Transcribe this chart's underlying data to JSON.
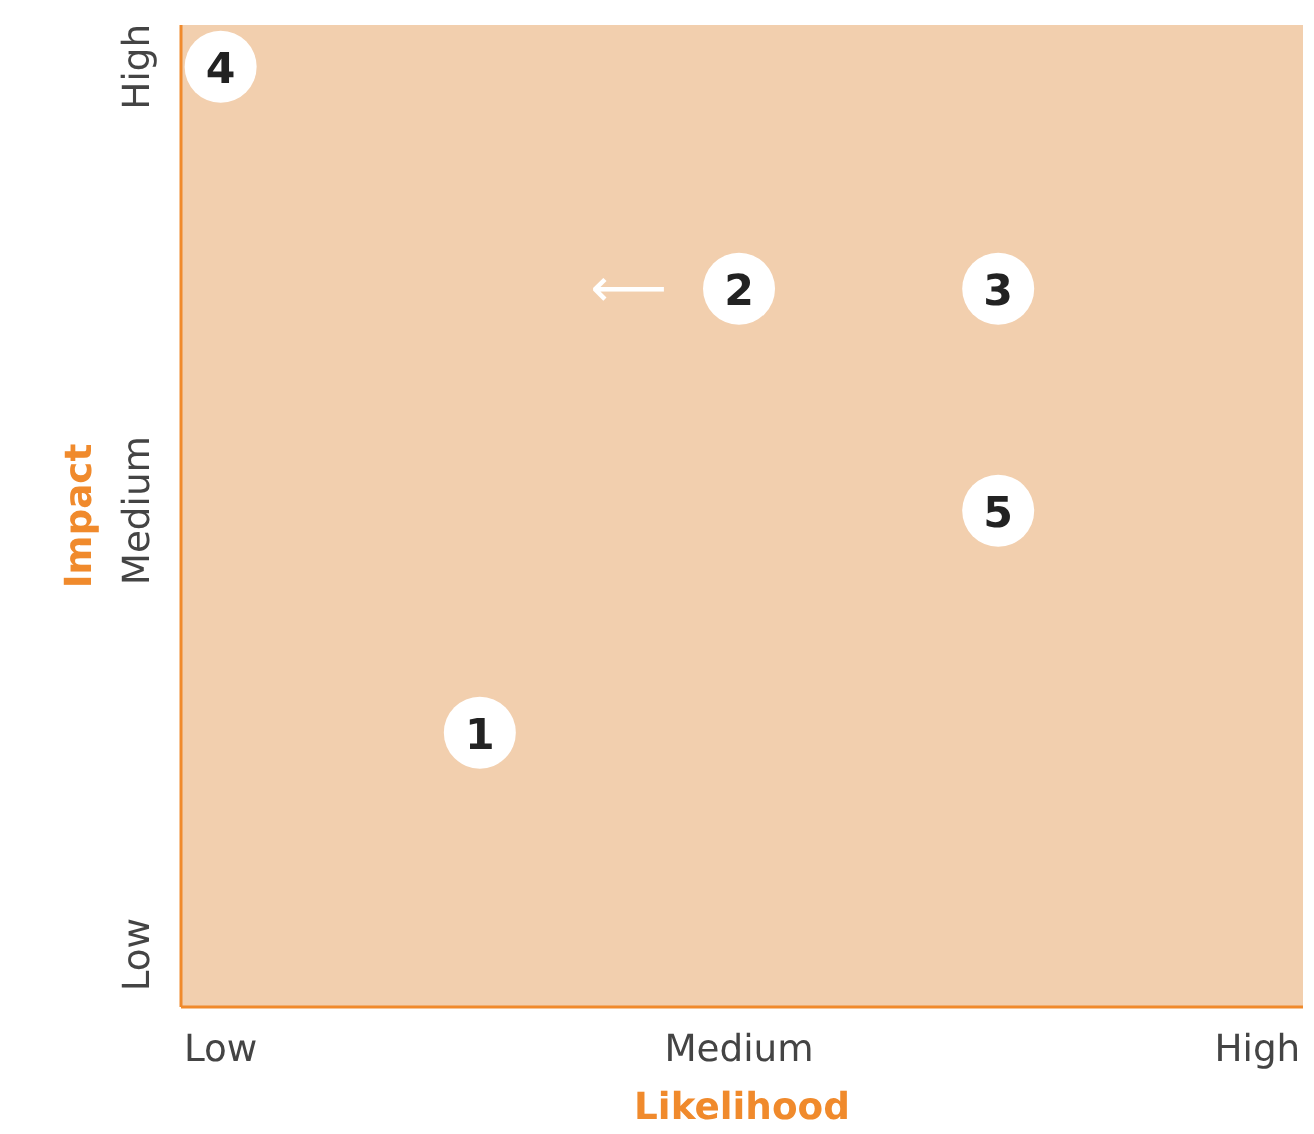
{
  "chart_data": {
    "type": "heatmap",
    "xlabel": "Likelihood",
    "ylabel": "Impact",
    "categories": [
      "Low",
      null,
      "Medium",
      null,
      "High"
    ],
    "y_categories": [
      "High",
      null,
      "Medium",
      null,
      "Low"
    ],
    "cells": [
      [
        4,
        null,
        null,
        null,
        null
      ],
      [
        null,
        null,
        2,
        3,
        null
      ],
      [
        null,
        null,
        null,
        5,
        null
      ],
      [
        null,
        1,
        null,
        null,
        null
      ],
      [
        null,
        null,
        null,
        null,
        null
      ]
    ],
    "data_labels": true,
    "annotations": [
      "⟵"
    ]
  }
}
